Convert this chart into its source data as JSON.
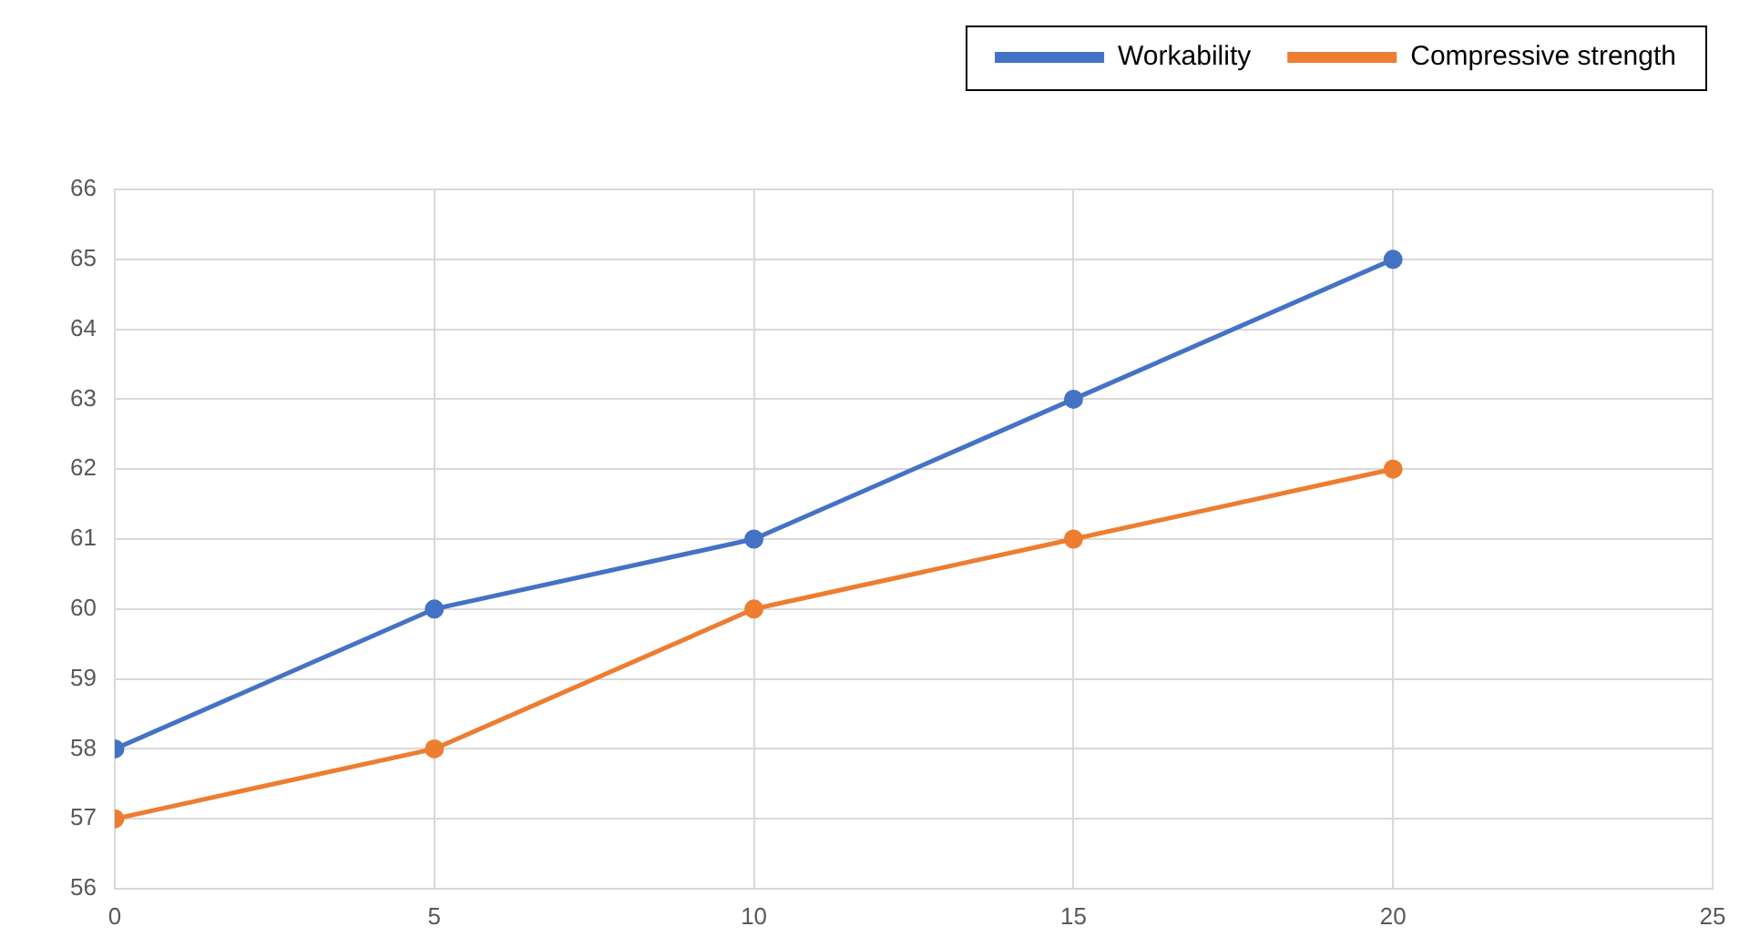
{
  "chart_data": {
    "type": "line",
    "x": [
      0,
      5,
      10,
      15,
      20
    ],
    "series": [
      {
        "name": "Workability",
        "color": "#4472c4",
        "values": [
          58,
          60,
          61,
          63,
          65
        ]
      },
      {
        "name": "Compressive strength",
        "color": "#ed7d31",
        "values": [
          57,
          58,
          60,
          61,
          62
        ]
      }
    ],
    "xlim": [
      0,
      25
    ],
    "xticks": [
      0,
      5,
      10,
      15,
      20,
      25
    ],
    "ylim": [
      56,
      66
    ],
    "yticks": [
      56,
      57,
      58,
      59,
      60,
      61,
      62,
      63,
      64,
      65,
      66
    ],
    "grid": true,
    "legend": "top right",
    "marker": "circle",
    "line_style": "solid"
  }
}
